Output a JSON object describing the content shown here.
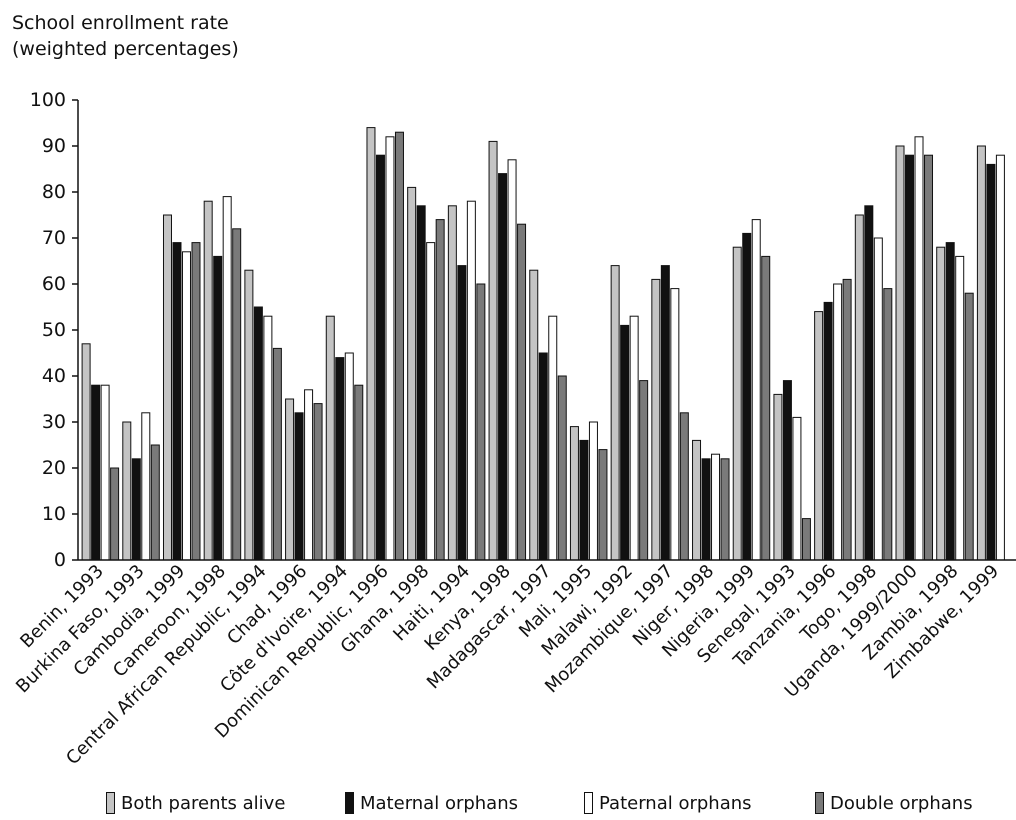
{
  "chart_data": {
    "type": "bar",
    "ylabel": [
      "School enrollment rate",
      "(weighted percentages)"
    ],
    "ylim": [
      0,
      100
    ],
    "yticks": [
      0,
      10,
      20,
      30,
      40,
      50,
      60,
      70,
      80,
      90,
      100
    ],
    "grid": false,
    "legend_position": "bottom",
    "categories": [
      "Benin, 1993",
      "Burkina Faso, 1993",
      "Cambodia, 1999",
      "Cameroon, 1998",
      "Central African Republic, 1994",
      "Chad, 1996",
      "Côte d'Ivoire, 1994",
      "Dominican Republic, 1996",
      "Ghana, 1998",
      "Haiti, 1994",
      "Kenya, 1998",
      "Madagascar, 1997",
      "Mali, 1995",
      "Malawi, 1992",
      "Mozambique, 1997",
      "Niger, 1998",
      "Nigeria, 1999",
      "Senegal, 1993",
      "Tanzania, 1996",
      "Togo, 1998",
      "Uganda, 1999/2000",
      "Zambia, 1998",
      "Zimbabwe, 1999"
    ],
    "series": [
      {
        "name": "Both parents alive",
        "color": "#c4c4c4",
        "values": [
          47,
          30,
          75,
          78,
          63,
          35,
          53,
          94,
          81,
          77,
          91,
          63,
          29,
          64,
          61,
          26,
          68,
          36,
          54,
          75,
          90,
          68,
          90
        ]
      },
      {
        "name": "Maternal orphans",
        "color": "#111111",
        "values": [
          38,
          22,
          69,
          66,
          55,
          32,
          44,
          88,
          77,
          64,
          84,
          45,
          26,
          51,
          64,
          22,
          71,
          39,
          56,
          77,
          88,
          69,
          86
        ]
      },
      {
        "name": "Paternal orphans",
        "color": "#ffffff",
        "values": [
          38,
          32,
          67,
          79,
          53,
          37,
          45,
          92,
          69,
          78,
          87,
          53,
          30,
          53,
          59,
          23,
          74,
          31,
          60,
          70,
          92,
          66,
          88
        ]
      },
      {
        "name": "Double orphans",
        "color": "#7a7a7a",
        "values": [
          20,
          25,
          69,
          72,
          46,
          34,
          38,
          93,
          74,
          60,
          73,
          40,
          24,
          39,
          32,
          22,
          66,
          9,
          61,
          59,
          88,
          58,
          null
        ]
      }
    ]
  }
}
